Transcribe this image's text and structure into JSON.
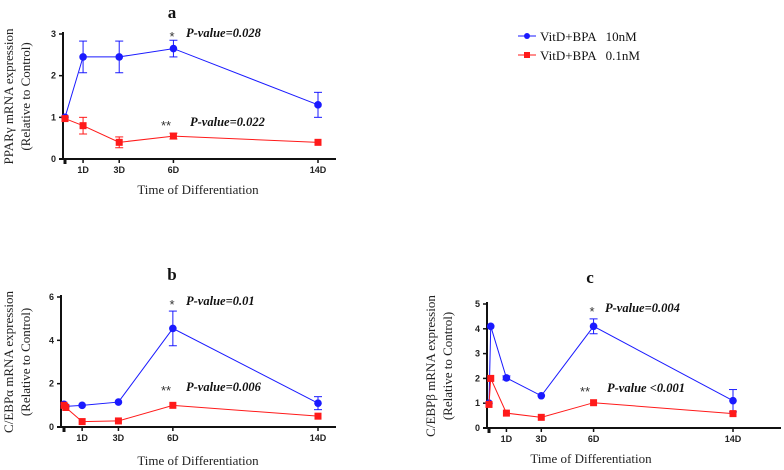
{
  "legend": [
    {
      "label": "VitD+BPA   10nM",
      "color": "#1a1aff",
      "marker": "circle"
    },
    {
      "label": "VitD+BPA   0.1nM",
      "color": "#ff1a1a",
      "marker": "square"
    }
  ],
  "chart_data": [
    {
      "type": "line",
      "title": "a",
      "xlabel": "Time of Differentiation",
      "ylabel": [
        "PPARγ mRNA expression",
        "(Relative to Control)"
      ],
      "xticks": [
        {
          "value": 1,
          "label": "1D"
        },
        {
          "value": 3,
          "label": "3D"
        },
        {
          "value": 6,
          "label": "6D"
        },
        {
          "value": 14,
          "label": "14D"
        }
      ],
      "yticks": [
        0,
        1,
        2,
        3
      ],
      "ylim": [
        0,
        3
      ],
      "xlim": [
        0,
        15
      ],
      "series": [
        {
          "name": "VitD+BPA 10nM",
          "x": [
            0,
            1,
            3,
            6,
            14
          ],
          "y": [
            1.0,
            2.45,
            2.45,
            2.65,
            1.3
          ],
          "err": [
            0.05,
            0.38,
            0.38,
            0.2,
            0.3
          ]
        },
        {
          "name": "VitD+BPA 0.1nM",
          "x": [
            0,
            1,
            3,
            6,
            14
          ],
          "y": [
            0.97,
            0.8,
            0.4,
            0.55,
            0.4
          ],
          "err": [
            0.03,
            0.2,
            0.13,
            0.07,
            0.02
          ]
        }
      ],
      "annotations": [
        {
          "star": "*",
          "text": "P-value=0.028"
        },
        {
          "star": "**",
          "text": "P-value=0.022"
        }
      ]
    },
    {
      "type": "line",
      "title": "b",
      "xlabel": "Time of Differentiation",
      "ylabel": [
        "C/EBPα mRNA expression",
        "(Relative to Control)"
      ],
      "xticks": [
        {
          "value": 1,
          "label": "1D"
        },
        {
          "value": 3,
          "label": "3D"
        },
        {
          "value": 6,
          "label": "6D"
        },
        {
          "value": 14,
          "label": "14D"
        }
      ],
      "yticks": [
        0,
        2,
        4,
        6
      ],
      "ylim": [
        0,
        6
      ],
      "xlim": [
        0,
        15
      ],
      "series": [
        {
          "name": "VitD+BPA 10nM",
          "x": [
            0,
            0.1,
            1,
            3,
            6,
            14
          ],
          "y": [
            1.05,
            0.95,
            1.0,
            1.15,
            4.55,
            1.1
          ],
          "err": [
            0.05,
            0.05,
            0.05,
            0.05,
            0.8,
            0.3
          ]
        },
        {
          "name": "VitD+BPA 0.1nM",
          "x": [
            0,
            0.1,
            1,
            3,
            6,
            14
          ],
          "y": [
            1.0,
            0.9,
            0.25,
            0.28,
            1.0,
            0.5
          ],
          "err": [
            0.03,
            0.03,
            0.03,
            0.03,
            0.05,
            0.05
          ]
        }
      ],
      "annotations": [
        {
          "star": "*",
          "text": "P-value=0.01"
        },
        {
          "star": "**",
          "text": "P-value=0.006"
        }
      ]
    },
    {
      "type": "line",
      "title": "c",
      "xlabel": "Time of Differentiation",
      "ylabel": [
        "C/EBPβ mRNA expression",
        "(Relative to Control)"
      ],
      "xticks": [
        {
          "value": 1,
          "label": "1D"
        },
        {
          "value": 3,
          "label": "3D"
        },
        {
          "value": 6,
          "label": "6D"
        },
        {
          "value": 14,
          "label": "14D"
        }
      ],
      "yticks": [
        0,
        1,
        2,
        3,
        4,
        5
      ],
      "ylim": [
        0,
        5
      ],
      "xlim": [
        0,
        16
      ],
      "series": [
        {
          "name": "VitD+BPA 10nM",
          "x": [
            0,
            0.1,
            1,
            3,
            6,
            14
          ],
          "y": [
            1.0,
            4.1,
            2.02,
            1.3,
            4.1,
            1.1
          ],
          "err": [
            0.03,
            0.05,
            0.08,
            0.05,
            0.3,
            0.45
          ]
        },
        {
          "name": "VitD+BPA 0.1nM",
          "x": [
            0,
            0.1,
            1,
            3,
            6,
            14
          ],
          "y": [
            0.95,
            2.0,
            0.6,
            0.43,
            1.02,
            0.58
          ],
          "err": [
            0.03,
            0.05,
            0.03,
            0.03,
            0.05,
            0.05
          ]
        }
      ],
      "annotations": [
        {
          "star": "*",
          "text": "P-value=0.004"
        },
        {
          "star": "**",
          "text": "P-value <0.001"
        }
      ]
    }
  ]
}
